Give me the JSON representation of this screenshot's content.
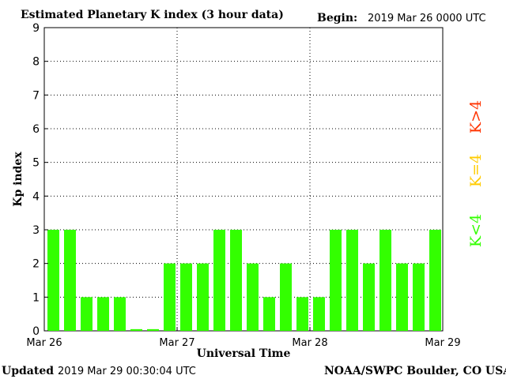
{
  "header": {
    "title": "Estimated Planetary K index (3 hour data)",
    "begin_label": "Begin:",
    "begin_value": "2019 Mar 26 0000 UTC"
  },
  "footer": {
    "updated_label": "Updated",
    "updated_value": "2019 Mar 29 00:30:04 UTC",
    "source": "NOAA/SWPC Boulder, CO USA"
  },
  "legend": {
    "green_label": "K<4",
    "yellow_label": "K=4",
    "red_label": "K>4",
    "green_color": "#33ff00",
    "yellow_color": "#ffcc00",
    "red_color": "#ff3300"
  },
  "chart_data": {
    "type": "bar",
    "xlabel": "Universal Time",
    "ylabel": "Kp index",
    "ylim": [
      0,
      9
    ],
    "yticks": [
      "0",
      "1",
      "2",
      "3",
      "4",
      "5",
      "6",
      "7",
      "8",
      "9"
    ],
    "xtick_labels": [
      "Mar 26",
      "Mar 27",
      "Mar 28",
      "Mar 29"
    ],
    "grid": "vertical dotted at day boundaries, horizontal dotted at each integer",
    "bar_color": "#33ff00",
    "values": [
      3,
      3,
      1,
      1,
      1,
      0.05,
      0.05,
      2,
      2,
      2,
      3,
      3,
      2,
      1,
      2,
      1,
      1,
      3,
      3,
      2,
      3,
      2,
      2,
      3
    ]
  }
}
